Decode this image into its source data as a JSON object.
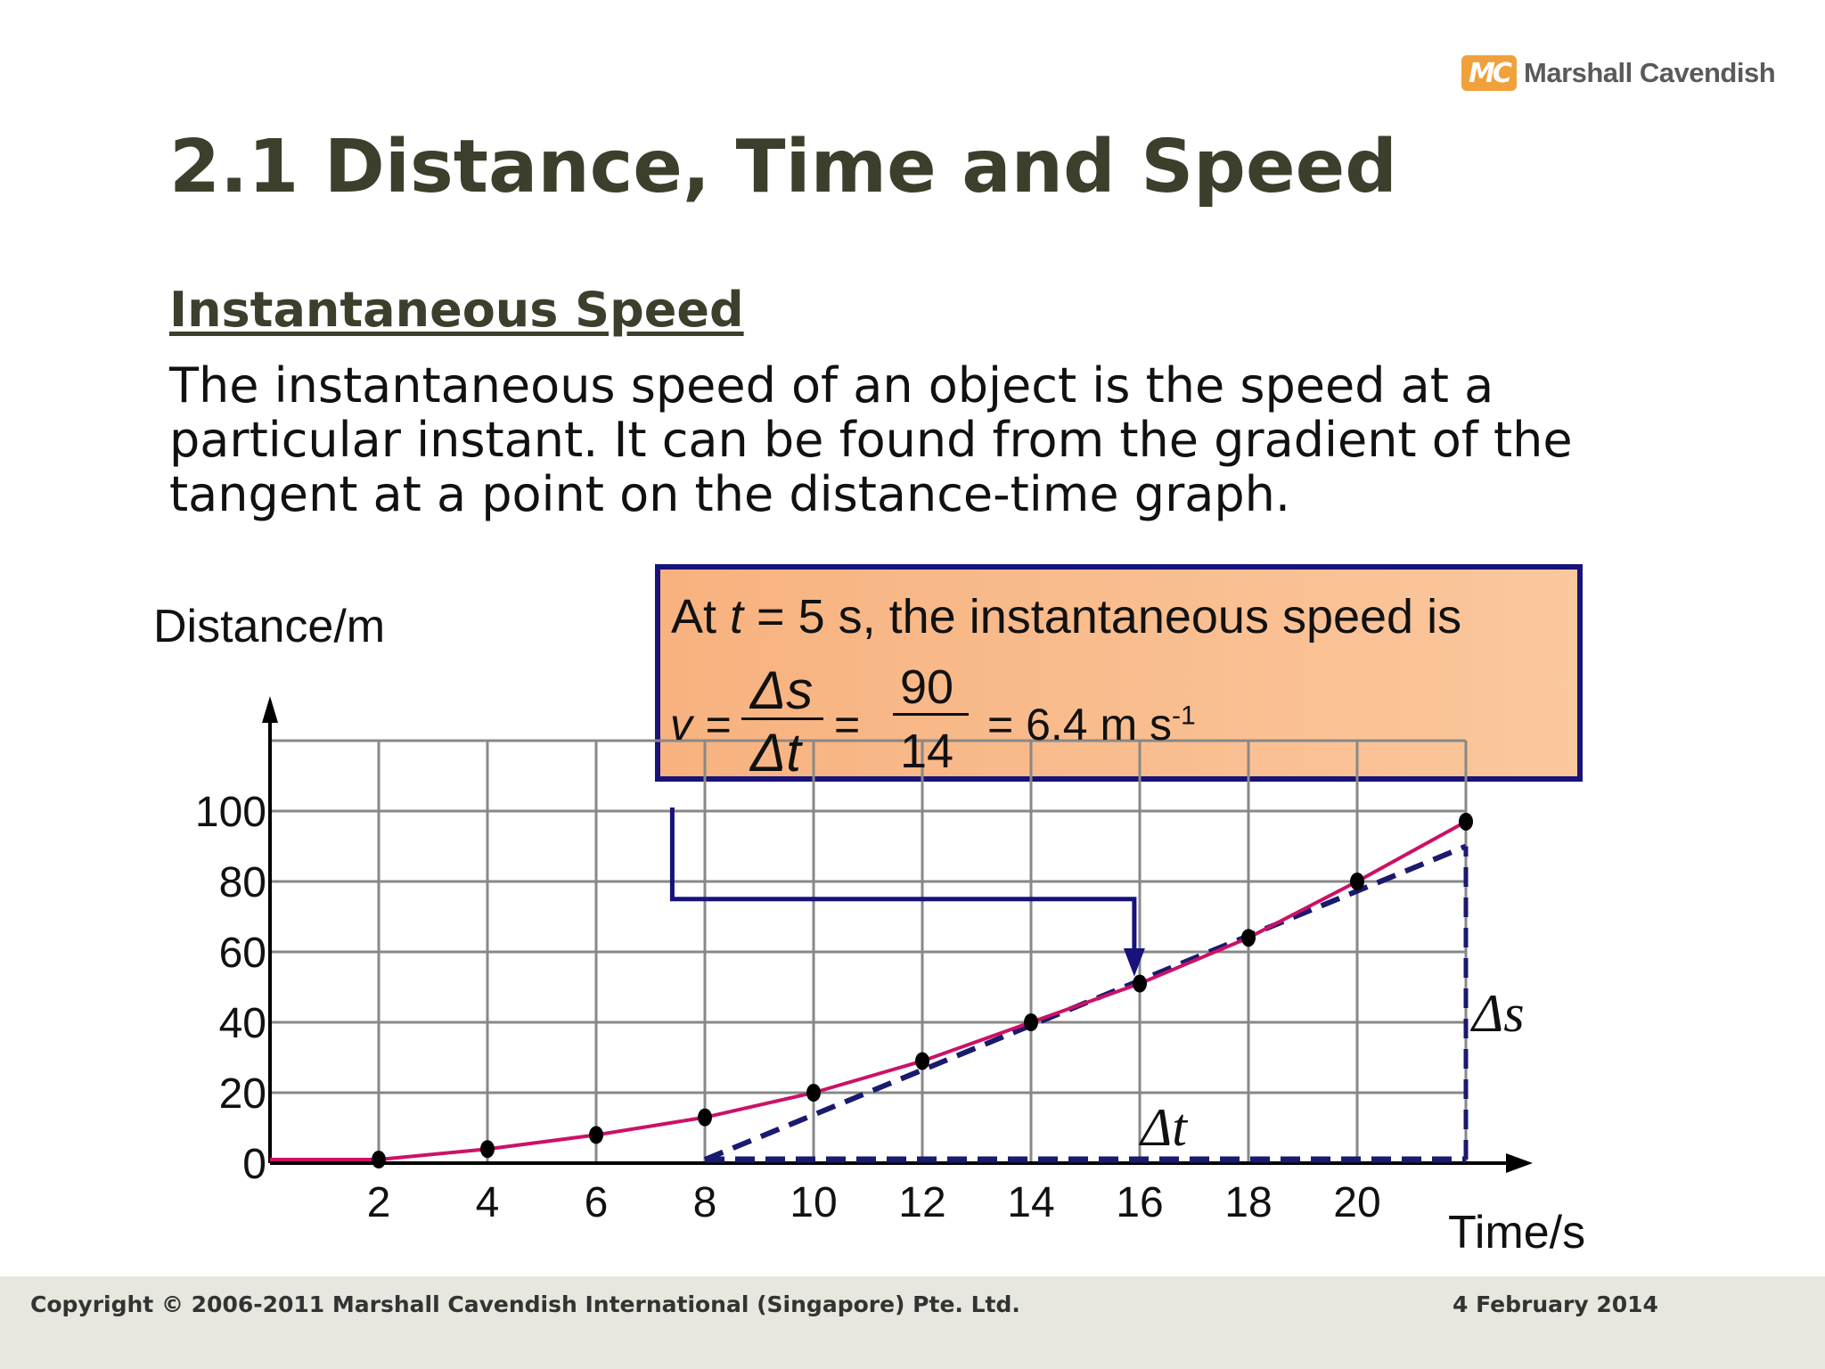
{
  "brand": {
    "logo_text": "MC",
    "name": "Marshall Cavendish"
  },
  "slide": {
    "title": "2.1 Distance, Time and Speed",
    "subtitle": "Instantaneous Speed",
    "body_lines": [
      "The instantaneous speed of an object is the speed at a",
      "particular instant. It can be found from the gradient of the",
      "tangent at a point on the distance-time graph."
    ]
  },
  "callout": {
    "at": "At ",
    "t": "t",
    "rest": " = 5 s, the instantaneous speed is",
    "v_label": "v =",
    "delta_s": "Δs",
    "delta_t": "Δt",
    "eq1": "=",
    "numerator": "90",
    "denominator": "14",
    "result": "= 6.4 m s",
    "result_exp": "-1"
  },
  "chart_data": {
    "type": "line",
    "xlabel": "Time/s",
    "ylabel": "Distance/m",
    "x_ticks": [
      "2",
      "4",
      "6",
      "8",
      "10",
      "12",
      "14",
      "16",
      "18",
      "20"
    ],
    "y_ticks": [
      "0",
      "20",
      "40",
      "60",
      "80",
      "100"
    ],
    "xlim": [
      0,
      22
    ],
    "ylim": [
      0,
      120
    ],
    "grid": true,
    "series": [
      {
        "values_x": [
          2,
          4,
          6,
          8,
          10,
          12,
          14,
          16,
          18,
          20,
          22
        ],
        "values_y": [
          1,
          4,
          8,
          13,
          20,
          29,
          40,
          51,
          64,
          80,
          97
        ],
        "color": "#cc1166"
      }
    ],
    "tangent": {
      "from": [
        8,
        1
      ],
      "to": [
        22,
        90
      ],
      "color": "#1a1a6e"
    },
    "delta_s_label": "Δs",
    "delta_t_label": "Δt"
  }
}
